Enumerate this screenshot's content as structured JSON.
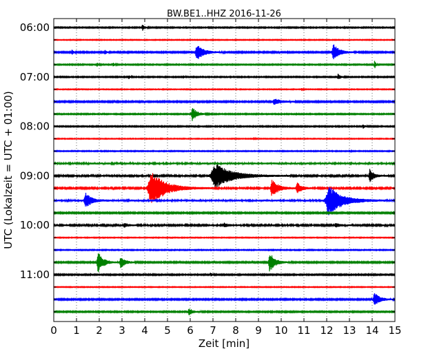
{
  "chart_data": {
    "type": "line",
    "title": "BW.BE1..HHZ 2016-11-26",
    "xlabel": "Zeit  [min]",
    "ylabel": "UTC (Lokalzeit = UTC + 01:00)",
    "xlim": [
      0,
      15
    ],
    "x_ticks": [
      "0",
      "1",
      "2",
      "3",
      "4",
      "5",
      "6",
      "7",
      "8",
      "9",
      "10",
      "11",
      "12",
      "13",
      "14",
      "15"
    ],
    "y_ticks": [
      {
        "label": "06:00",
        "row": 0
      },
      {
        "label": "07:00",
        "row": 4
      },
      {
        "label": "08:00",
        "row": 8
      },
      {
        "label": "09:00",
        "row": 12
      },
      {
        "label": "10:00",
        "row": 16
      },
      {
        "label": "11:00",
        "row": 20
      }
    ],
    "grid": "vertical dotted at each minute",
    "row_interval_minutes": 15,
    "row_colors": [
      "#000000",
      "#ff0000",
      "#0000ff",
      "#008000"
    ],
    "rows": [
      {
        "start": "06:00",
        "noise": 0.8,
        "events": [
          {
            "t": 3.9,
            "amp": 5,
            "dur": 0.15
          }
        ]
      },
      {
        "start": "06:15",
        "noise": 0.6,
        "events": []
      },
      {
        "start": "06:30",
        "noise": 1.0,
        "events": [
          {
            "t": 0.8,
            "amp": 4,
            "dur": 0.1
          },
          {
            "t": 2.25,
            "amp": 4,
            "dur": 0.1
          },
          {
            "t": 6.3,
            "amp": 12,
            "dur": 0.5
          },
          {
            "t": 12.3,
            "amp": 12,
            "dur": 0.45
          }
        ]
      },
      {
        "start": "06:45",
        "noise": 0.8,
        "events": [
          {
            "t": 1.9,
            "amp": 3,
            "dur": 0.12
          },
          {
            "t": 2.6,
            "amp": 3,
            "dur": 0.12
          },
          {
            "t": 14.1,
            "amp": 10,
            "dur": 0.08
          }
        ]
      },
      {
        "start": "07:00",
        "noise": 0.8,
        "events": [
          {
            "t": 3.3,
            "amp": 3,
            "dur": 0.1
          },
          {
            "t": 5.7,
            "amp": 2,
            "dur": 0.1
          },
          {
            "t": 12.5,
            "amp": 4,
            "dur": 0.2
          }
        ]
      },
      {
        "start": "07:15",
        "noise": 0.6,
        "events": [
          {
            "t": 10.9,
            "amp": 3,
            "dur": 0.08
          }
        ]
      },
      {
        "start": "07:30",
        "noise": 1.0,
        "events": [
          {
            "t": 9.7,
            "amp": 4,
            "dur": 0.6
          }
        ]
      },
      {
        "start": "07:45",
        "noise": 0.8,
        "events": [
          {
            "t": 6.1,
            "amp": 10,
            "dur": 0.35
          }
        ]
      },
      {
        "start": "08:00",
        "noise": 0.8,
        "events": [
          {
            "t": 13.6,
            "amp": 3,
            "dur": 0.15
          }
        ]
      },
      {
        "start": "08:15",
        "noise": 0.6,
        "events": [
          {
            "t": 8.8,
            "amp": 2,
            "dur": 0.08
          }
        ]
      },
      {
        "start": "08:30",
        "noise": 0.7,
        "events": [
          {
            "t": 13.0,
            "amp": 2,
            "dur": 0.1
          }
        ]
      },
      {
        "start": "08:45",
        "noise": 1.4,
        "events": []
      },
      {
        "start": "09:00",
        "noise": 1.2,
        "events": [
          {
            "t": 7.1,
            "amp": 18,
            "dur": 1.3
          },
          {
            "t": 13.9,
            "amp": 10,
            "dur": 0.3
          }
        ]
      },
      {
        "start": "09:15",
        "noise": 1.2,
        "events": [
          {
            "t": 4.3,
            "amp": 24,
            "dur": 1.1
          },
          {
            "t": 9.6,
            "amp": 12,
            "dur": 0.5
          },
          {
            "t": 10.7,
            "amp": 8,
            "dur": 0.35
          }
        ]
      },
      {
        "start": "09:30",
        "noise": 1.4,
        "events": [
          {
            "t": 1.4,
            "amp": 11,
            "dur": 0.45
          },
          {
            "t": 12.1,
            "amp": 22,
            "dur": 1.0
          }
        ]
      },
      {
        "start": "09:45",
        "noise": 1.0,
        "events": []
      },
      {
        "start": "10:00",
        "noise": 1.2,
        "events": [
          {
            "t": 3.1,
            "amp": 3,
            "dur": 0.3
          },
          {
            "t": 7.5,
            "amp": 3,
            "dur": 0.3
          },
          {
            "t": 12.4,
            "amp": 3,
            "dur": 0.3
          }
        ]
      },
      {
        "start": "10:15",
        "noise": 0.6,
        "events": []
      },
      {
        "start": "10:30",
        "noise": 0.7,
        "events": []
      },
      {
        "start": "10:45",
        "noise": 1.0,
        "events": [
          {
            "t": 1.95,
            "amp": 15,
            "dur": 0.4
          },
          {
            "t": 2.95,
            "amp": 8,
            "dur": 0.35
          },
          {
            "t": 9.5,
            "amp": 14,
            "dur": 0.4
          }
        ]
      },
      {
        "start": "11:00",
        "noise": 0.9,
        "events": [
          {
            "t": 6.9,
            "amp": 3,
            "dur": 0.1
          }
        ]
      },
      {
        "start": "11:15",
        "noise": 0.6,
        "events": []
      },
      {
        "start": "11:30",
        "noise": 1.0,
        "events": [
          {
            "t": 14.1,
            "amp": 10,
            "dur": 0.4
          }
        ]
      },
      {
        "start": "11:45",
        "noise": 0.9,
        "events": [
          {
            "t": 5.95,
            "amp": 5,
            "dur": 0.3
          }
        ]
      }
    ]
  }
}
